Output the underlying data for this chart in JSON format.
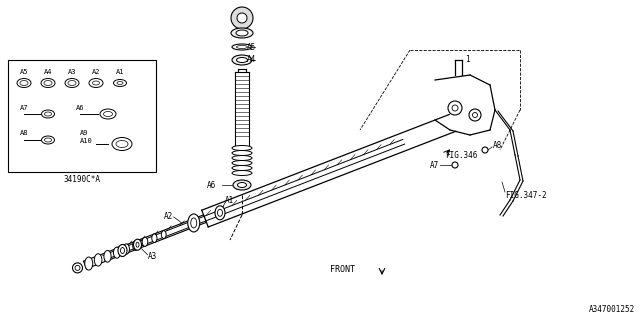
{
  "bg_color": "#ffffff",
  "line_color": "#000000",
  "fig_width": 6.4,
  "fig_height": 3.2,
  "dpi": 100,
  "part_number": "34190C*A",
  "diagram_number": "A347001252",
  "fig346": "FIG.346",
  "fig347": "FIG.347-2",
  "front_label": "FRONT"
}
